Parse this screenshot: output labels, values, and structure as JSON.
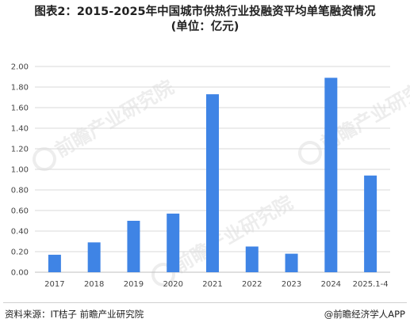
{
  "title_line1": "图表2：2015-2025年中国城市供热行业投融资平均单笔融资情况",
  "title_line2": "(单位：亿元)",
  "footer": {
    "source": "资料来源：IT桔子 前瞻产业研究院",
    "brand": "@前瞻经济学人APP"
  },
  "watermark": {
    "text": "前瞻产业研究院",
    "icon": "qianzhan-logo-icon"
  },
  "colors": {
    "bar": "#3f84e5",
    "grid": "#d9d9d9",
    "text": "#444444"
  },
  "chart_data": {
    "type": "bar",
    "title": "图表2：2015-2025年中国城市供热行业投融资平均单笔融资情况",
    "subtitle": "(单位：亿元)",
    "categories": [
      "2017",
      "2018",
      "2019",
      "2020",
      "2021",
      "2022",
      "2023",
      "2024",
      "2025.1-4"
    ],
    "values": [
      0.17,
      0.29,
      0.5,
      0.57,
      1.73,
      0.25,
      0.18,
      1.89,
      0.94
    ],
    "ylim": [
      0,
      2.0
    ],
    "yticks": [
      "0.00",
      "0.20",
      "0.40",
      "0.60",
      "0.80",
      "1.00",
      "1.20",
      "1.40",
      "1.60",
      "1.80",
      "2.00"
    ],
    "xlabel": "",
    "ylabel": "",
    "grid": true,
    "legend": "none"
  }
}
